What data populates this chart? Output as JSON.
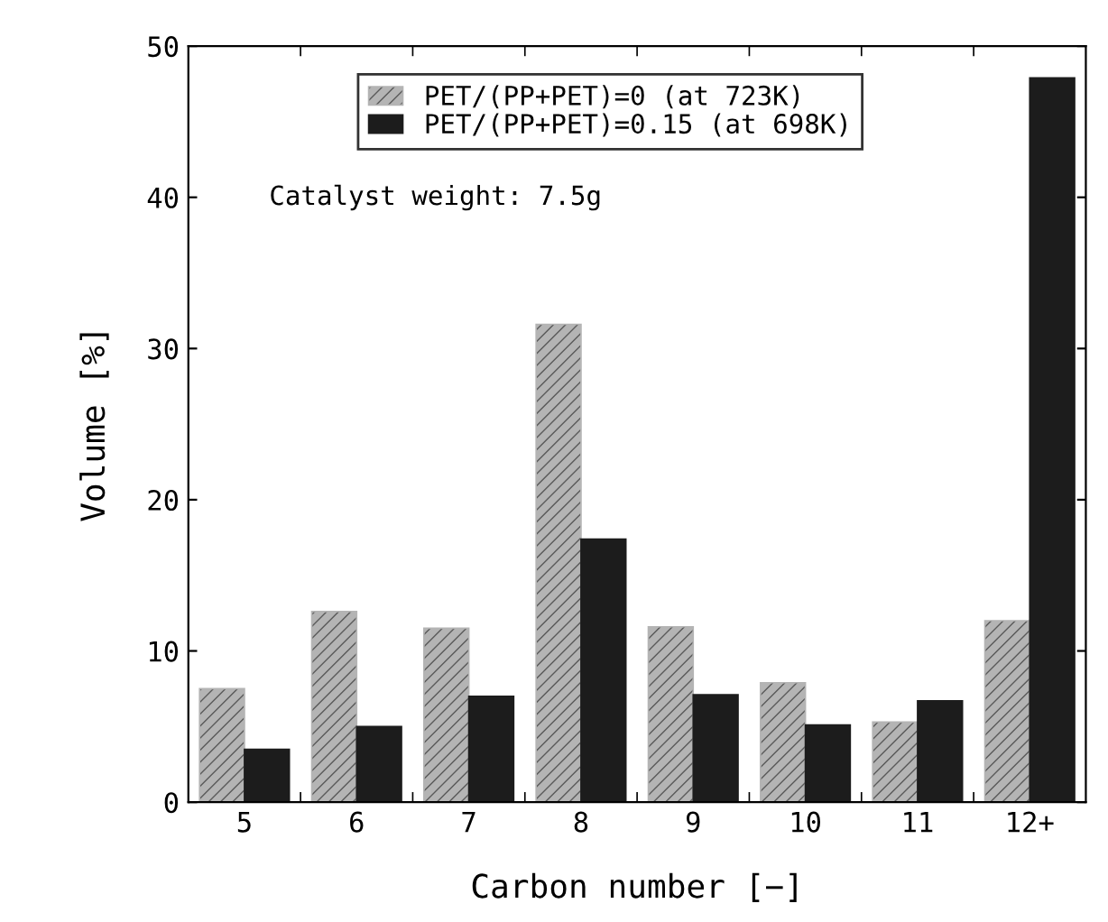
{
  "chart_data": {
    "type": "bar",
    "xlabel": "Carbon number [−]",
    "ylabel": "Volume [%]",
    "categories": [
      "5",
      "6",
      "7",
      "8",
      "9",
      "10",
      "11",
      "12+"
    ],
    "series": [
      {
        "name": "PET/(PP+PET)=0 (at 723K)",
        "color": "#b4b4b4",
        "values": [
          7.5,
          12.6,
          11.5,
          31.6,
          11.6,
          7.9,
          5.3,
          12.0
        ]
      },
      {
        "name": "PET/(PP+PET)=0.15 (at 698K)",
        "color": "#1c1c1c",
        "values": [
          3.5,
          5.0,
          7.0,
          17.4,
          7.1,
          5.1,
          6.7,
          47.9
        ]
      }
    ],
    "ylim": [
      0,
      50
    ],
    "yticks": [
      0,
      10,
      20,
      30,
      40,
      50
    ],
    "grid": false,
    "legend": "top",
    "annotations": [
      "Catalyst weight: 7.5g"
    ]
  }
}
